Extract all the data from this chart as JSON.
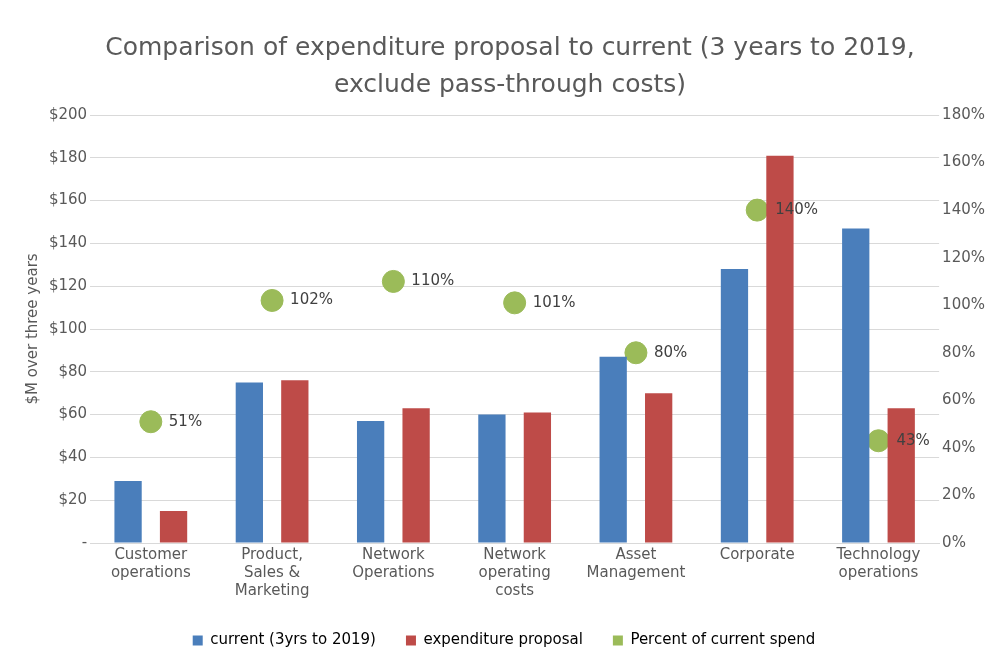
{
  "chart_data": {
    "type": "bar",
    "title": "Comparison of expenditure proposal to current (3 years to 2019, exclude pass-through costs)",
    "ylabel": "$M over three years",
    "categories": [
      "Customer operations",
      "Product, Sales & Marketing",
      "Network Operations",
      "Network operating costs",
      "Asset Management",
      "Corporate",
      "Technology operations"
    ],
    "series": [
      {
        "name": "current (3yrs to 2019)",
        "color": "#4a7ebb",
        "values": [
          29,
          75,
          57,
          60,
          87,
          128,
          147
        ]
      },
      {
        "name": "expenditure proposal",
        "color": "#be4b48",
        "values": [
          15,
          76,
          63,
          61,
          70,
          181,
          63
        ]
      },
      {
        "name": "Percent of current spend",
        "type": "scatter",
        "axis": "y2",
        "color": "#9bbb59",
        "x": [
          "Customer operations",
          "Product, Sales & Marketing",
          "Network Operations",
          "Network operating costs",
          "Asset Management",
          "Corporate",
          "Technology operations"
        ],
        "values": [
          51,
          102,
          110,
          101,
          80,
          140,
          43
        ],
        "value_labels": [
          "51%",
          "102%",
          "110%",
          "101%",
          "80%",
          "140%",
          "43%"
        ]
      }
    ],
    "ylim": [
      0,
      200
    ],
    "yticks": [
      {
        "value": 0,
        "label": "-"
      },
      {
        "value": 20,
        "label": "$20"
      },
      {
        "value": 40,
        "label": "$40"
      },
      {
        "value": 60,
        "label": "$60"
      },
      {
        "value": 80,
        "label": "$80"
      },
      {
        "value": 100,
        "label": "$100"
      },
      {
        "value": 120,
        "label": "$120"
      },
      {
        "value": 140,
        "label": "$140"
      },
      {
        "value": 160,
        "label": "$160"
      },
      {
        "value": 180,
        "label": "$180"
      },
      {
        "value": 200,
        "label": "$200"
      }
    ],
    "y2lim": [
      0,
      180
    ],
    "y2ticks": [
      {
        "value": 0,
        "label": "0%"
      },
      {
        "value": 20,
        "label": "20%"
      },
      {
        "value": 40,
        "label": "40%"
      },
      {
        "value": 60,
        "label": "60%"
      },
      {
        "value": 80,
        "label": "80%"
      },
      {
        "value": 100,
        "label": "100%"
      },
      {
        "value": 120,
        "label": "120%"
      },
      {
        "value": 140,
        "label": "140%"
      },
      {
        "value": 160,
        "label": "160%"
      },
      {
        "value": 180,
        "label": "180%"
      }
    ],
    "grid": "y",
    "legend": "bottom",
    "marker": "circle"
  }
}
